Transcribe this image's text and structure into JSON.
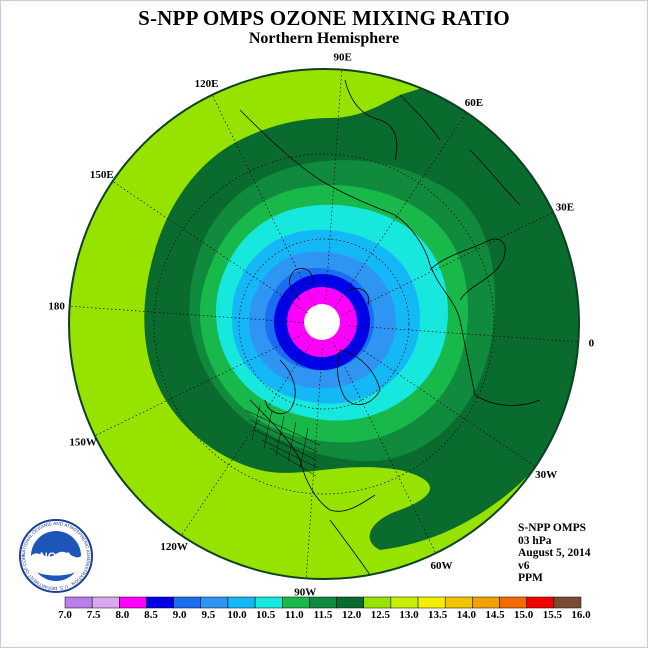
{
  "title": "S-NPP OMPS OZONE MIXING RATIO",
  "subtitle": "Northern Hemisphere",
  "info_lines": [
    "S-NPP OMPS",
    "03 hPa",
    "August 5, 2014",
    "v6",
    "PPM"
  ],
  "meridian_labels": [
    {
      "text": "90E",
      "lon": 90
    },
    {
      "text": "60E",
      "lon": 60
    },
    {
      "text": "30E",
      "lon": 30
    },
    {
      "text": "0",
      "lon": 0
    },
    {
      "text": "30W",
      "lon": -30
    },
    {
      "text": "60W",
      "lon": -60
    },
    {
      "text": "90W",
      "lon": -90
    },
    {
      "text": "120W",
      "lon": -120
    },
    {
      "text": "150W",
      "lon": -150
    },
    {
      "text": "180",
      "lon": 180
    },
    {
      "text": "150E",
      "lon": 150
    },
    {
      "text": "120E",
      "lon": 120
    }
  ],
  "logo": {
    "text": "NOAA",
    "ring_text": "NATIONAL OCEANIC AND ATMOSPHERIC ADMINISTRATION · U.S. DEPARTMENT OF COMMERCE ·"
  },
  "colorbar": {
    "ticks": [
      "7.0",
      "7.5",
      "8.0",
      "8.5",
      "9.0",
      "9.5",
      "10.0",
      "10.5",
      "11.0",
      "11.5",
      "12.0",
      "12.5",
      "13.0",
      "13.5",
      "14.0",
      "14.5",
      "15.0",
      "15.5",
      "16.0"
    ],
    "colors": [
      "#b97ee8",
      "#d9a7f0",
      "#ff00ff",
      "#0000e6",
      "#1a6ef0",
      "#2e95f2",
      "#15b8f7",
      "#17e8dd",
      "#19b84a",
      "#108a3c",
      "#0a6b2f",
      "#97e300",
      "#c6f000",
      "#f2f000",
      "#f2c400",
      "#f2a200",
      "#f26b00",
      "#f20000",
      "#7a4a32"
    ]
  },
  "map_colors": {
    "dark_green": "#0a6b2f",
    "mid_green": "#108a3c",
    "green": "#19b84a",
    "lime": "#97e300",
    "cyan": "#17e8dd",
    "light_blue": "#15b8f7",
    "blue": "#2e95f2",
    "medium_blue": "#1a6ef0",
    "deep_blue": "#0000e6",
    "magenta": "#ff00ff"
  }
}
